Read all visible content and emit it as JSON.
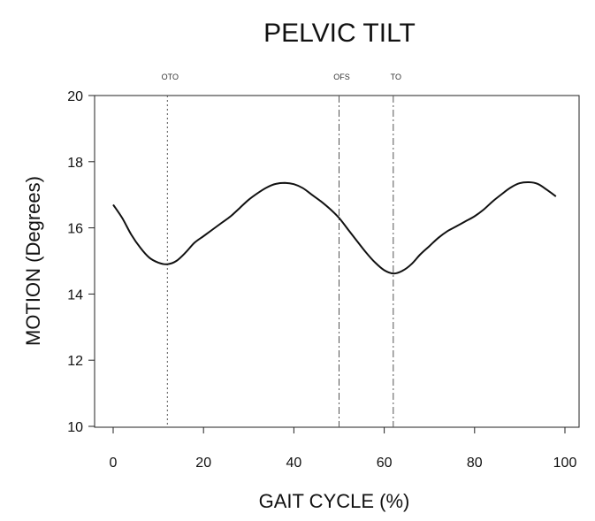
{
  "chart_data": {
    "type": "line",
    "title": "PELVIC TILT",
    "xlabel": "GAIT CYCLE (%)",
    "ylabel": "MOTION (Degrees)",
    "xlim": [
      0,
      100
    ],
    "ylim": [
      10,
      20
    ],
    "xticks": [
      "0",
      "20",
      "40",
      "60",
      "80",
      "100"
    ],
    "yticks": [
      "10",
      "12",
      "14",
      "16",
      "18",
      "20"
    ],
    "grid": false,
    "series": [
      {
        "x": [
          0,
          2,
          4,
          6,
          8,
          10,
          12,
          14,
          16,
          18,
          20,
          22,
          24,
          26,
          28,
          30,
          32,
          34,
          36,
          38,
          40,
          42,
          44,
          46,
          48,
          50,
          52,
          54,
          56,
          58,
          60,
          62,
          64,
          66,
          68,
          70,
          72,
          74,
          76,
          78,
          80,
          82,
          84,
          86,
          88,
          90,
          92,
          94,
          96,
          98
        ],
        "values": [
          16.7,
          16.3,
          15.8,
          15.4,
          15.1,
          14.95,
          14.9,
          15.0,
          15.25,
          15.55,
          15.75,
          15.95,
          16.15,
          16.35,
          16.6,
          16.85,
          17.05,
          17.22,
          17.33,
          17.36,
          17.32,
          17.2,
          17.0,
          16.8,
          16.57,
          16.3,
          15.95,
          15.6,
          15.25,
          14.95,
          14.72,
          14.62,
          14.7,
          14.9,
          15.2,
          15.45,
          15.7,
          15.9,
          16.05,
          16.2,
          16.35,
          16.55,
          16.8,
          17.02,
          17.22,
          17.35,
          17.38,
          17.33,
          17.15,
          16.95
        ]
      }
    ],
    "events": [
      {
        "label": "OTO",
        "x": 12,
        "style": "dotted"
      },
      {
        "label": "OFS",
        "x": 50,
        "style": "dashdot"
      },
      {
        "label": "TO",
        "x": 62,
        "style": "dashdot"
      }
    ]
  }
}
